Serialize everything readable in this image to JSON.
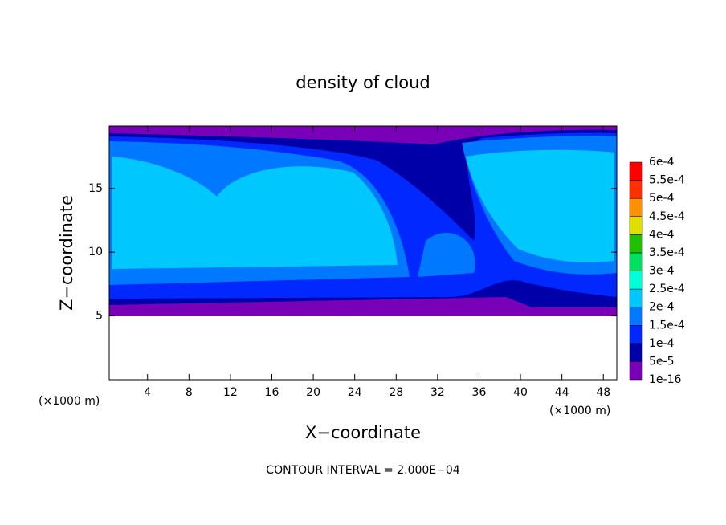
{
  "chart_data": {
    "type": "contour",
    "title": "density of cloud",
    "xlabel": "X−coordinate",
    "ylabel": "Z−coordinate",
    "xunit_left": "(×1000 m)",
    "xunit_right": "(×1000 m)",
    "footer": "CONTOUR INTERVAL = 2.000E−04",
    "xlim": [
      0.3,
      49.3
    ],
    "ylim": [
      0,
      19.9
    ],
    "xticks": [
      4,
      8,
      12,
      16,
      20,
      24,
      28,
      32,
      36,
      40,
      44,
      48
    ],
    "yticks": [
      5,
      10,
      15
    ],
    "colorbar": {
      "levels": [
        {
          "value": 1e-16,
          "label": "1e-16"
        },
        {
          "value": 5e-05,
          "label": "5e-5"
        },
        {
          "value": 0.0001,
          "label": "1e-4"
        },
        {
          "value": 0.00015,
          "label": "1.5e-4"
        },
        {
          "value": 0.0002,
          "label": "2e-4"
        },
        {
          "value": 0.00025,
          "label": "2.5e-4"
        },
        {
          "value": 0.0003,
          "label": "3e-4"
        },
        {
          "value": 0.00035,
          "label": "3.5e-4"
        },
        {
          "value": 0.0004,
          "label": "4e-4"
        },
        {
          "value": 0.00045,
          "label": "4.5e-4"
        },
        {
          "value": 0.0005,
          "label": "5e-4"
        },
        {
          "value": 0.00055,
          "label": "5.5e-4"
        },
        {
          "value": 0.0006,
          "label": "6e-4"
        }
      ],
      "colors": [
        "#7a00b8",
        "#0000a8",
        "#0028ff",
        "#0078ff",
        "#00c8ff",
        "#00ffd8",
        "#00e060",
        "#20c000",
        "#e0e000",
        "#ff9000",
        "#ff3000",
        "#ff0000"
      ]
    }
  }
}
